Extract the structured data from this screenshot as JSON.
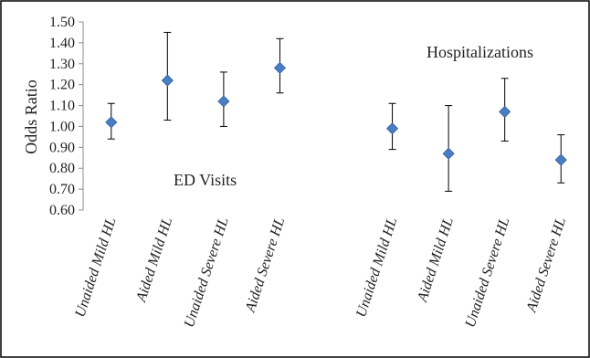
{
  "chart_data": {
    "type": "scatter",
    "ylabel": "Odds Ratio",
    "ylim": [
      0.6,
      1.5
    ],
    "yticks": [
      "0.60",
      "0.70",
      "0.80",
      "0.90",
      "1.00",
      "1.10",
      "1.20",
      "1.30",
      "1.40",
      "1.50"
    ],
    "grid": false,
    "categories": [
      "Unaided Mild HL",
      "Aided Mild HL",
      "Unaided Severe HL",
      "Aided Severe HL",
      "",
      "Unaided Mild HL",
      "Aided Mild HL",
      "Unaided Severe HL",
      "Aided Severe HL"
    ],
    "values": [
      1.02,
      1.22,
      1.12,
      1.28,
      null,
      0.99,
      0.87,
      1.07,
      0.84
    ],
    "error_low": [
      0.94,
      1.03,
      1.0,
      1.16,
      null,
      0.89,
      0.69,
      0.93,
      0.73
    ],
    "error_high": [
      1.11,
      1.45,
      1.26,
      1.42,
      null,
      1.11,
      1.1,
      1.23,
      0.96
    ],
    "annotations": [
      {
        "text": "ED Visits",
        "position": "lower-left"
      },
      {
        "text": "Hospitalizations",
        "position": "upper-right"
      }
    ],
    "marker": "diamond",
    "marker_color": "#4a7dc2"
  }
}
